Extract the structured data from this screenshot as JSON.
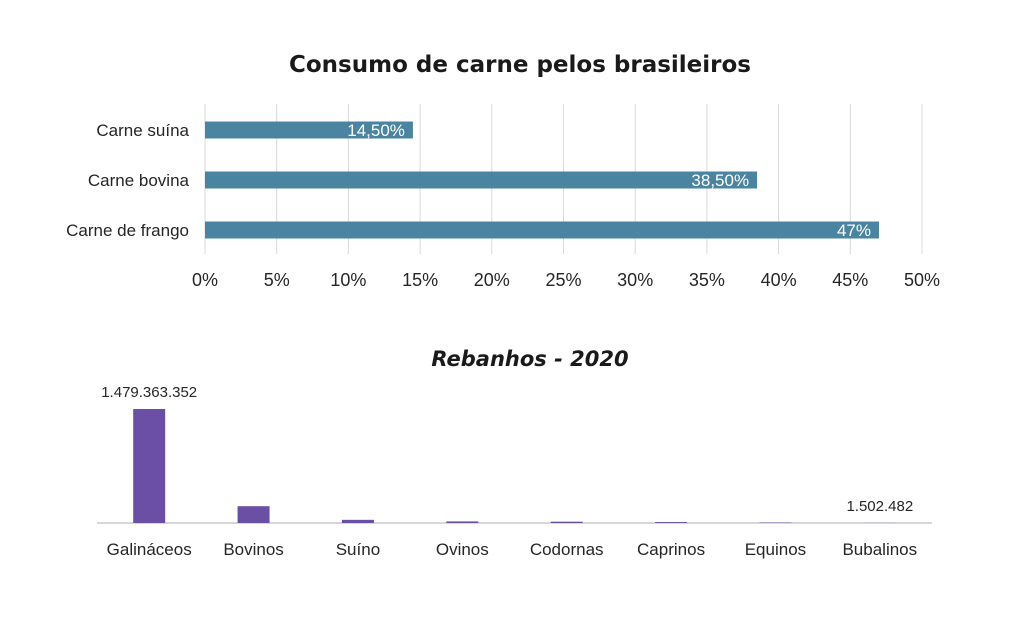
{
  "chart_data": [
    {
      "type": "bar",
      "orientation": "horizontal",
      "title": "Consumo de carne pelos brasileiros",
      "categories": [
        "Carne suína",
        "Carne bovina",
        "Carne de frango"
      ],
      "values": [
        14.5,
        38.5,
        47
      ],
      "data_labels": [
        "14,50%",
        "38,50%",
        "47%"
      ],
      "xlim": [
        0,
        50
      ],
      "xticks": [
        0,
        5,
        10,
        15,
        20,
        25,
        30,
        35,
        40,
        45,
        50
      ],
      "xtick_labels": [
        "0%",
        "5%",
        "10%",
        "15%",
        "20%",
        "25%",
        "30%",
        "35%",
        "40%",
        "45%",
        "50%"
      ],
      "grid": true,
      "legend": "none",
      "bar_color": "#4a84a0"
    },
    {
      "type": "bar",
      "orientation": "vertical",
      "title": "Rebanhos - 2020",
      "categories": [
        "Galináceos",
        "Bovinos",
        "Suíno",
        "Ovinos",
        "Codornas",
        "Caprinos",
        "Equinos",
        "Bubalinos"
      ],
      "values": [
        1479363352,
        218200000,
        41100000,
        20600000,
        17000000,
        12100000,
        5960000,
        1502482
      ],
      "data_labels": [
        "1.479.363.352",
        "",
        "",
        "",
        "",
        "",
        "",
        "1.502.482"
      ],
      "grid": false,
      "legend": "none",
      "bar_color": "#6a4fa4"
    }
  ]
}
